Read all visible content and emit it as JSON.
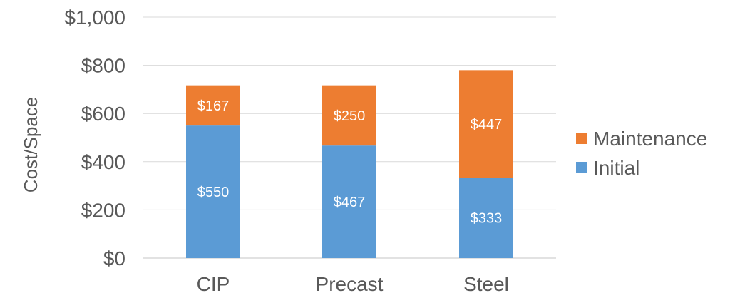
{
  "chart_data": {
    "type": "bar",
    "stacked": true,
    "categories": [
      "CIP",
      "Precast",
      "Steel"
    ],
    "series": [
      {
        "name": "Initial",
        "values": [
          550,
          467,
          333
        ],
        "color": "#5b9bd5",
        "labels": [
          "$550",
          "$467",
          "$333"
        ]
      },
      {
        "name": "Maintenance",
        "values": [
          167,
          250,
          447
        ],
        "color": "#ed7d31",
        "labels": [
          "$167",
          "$250",
          "$447"
        ]
      }
    ],
    "ylabel": "Cost/Space",
    "ylim": [
      0,
      1000
    ],
    "yticks": [
      0,
      200,
      400,
      600,
      800,
      1000
    ],
    "ytick_labels": [
      "$0",
      "$200",
      "$400",
      "$600",
      "$800",
      "$1,000"
    ],
    "grid": true,
    "legend": {
      "placement": "right",
      "order": [
        "Maintenance",
        "Initial"
      ]
    }
  }
}
